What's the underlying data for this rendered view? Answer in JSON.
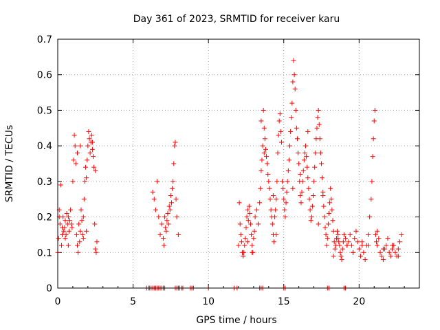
{
  "chart_data": {
    "type": "scatter",
    "title": "Day 361 of 2023, SRMTID for receiver karu",
    "xlabel": "GPS time / hours",
    "ylabel": "SRMTID / TECUs",
    "xlim": [
      0,
      24
    ],
    "ylim": [
      0,
      0.7
    ],
    "xticks": [
      0,
      5,
      10,
      15,
      20
    ],
    "xtick_labels": [
      "0",
      "5",
      "10",
      "15",
      "20"
    ],
    "yticks": [
      0,
      0.1,
      0.2,
      0.3,
      0.4,
      0.5,
      0.6,
      0.7
    ],
    "ytick_labels": [
      "0",
      "0.1",
      "0.2",
      "0.3",
      "0.4",
      "0.5",
      "0.6",
      "0.7"
    ],
    "grid": true,
    "marker": "+",
    "color": "#ff0000",
    "series": [
      {
        "name": "SRMTID",
        "x": [
          0.0,
          0.05,
          0.1,
          0.15,
          0.2,
          0.25,
          0.3,
          0.35,
          0.4,
          0.45,
          0.5,
          0.55,
          0.6,
          0.65,
          0.7,
          0.75,
          0.8,
          0.85,
          0.9,
          0.95,
          1.0,
          1.05,
          1.1,
          1.15,
          1.2,
          1.25,
          1.3,
          1.35,
          1.4,
          1.45,
          1.5,
          1.55,
          1.6,
          1.65,
          1.7,
          1.75,
          1.8,
          1.85,
          1.9,
          1.95,
          2.0,
          2.05,
          2.1,
          2.15,
          2.2,
          2.25,
          2.3,
          2.35,
          2.4,
          2.45,
          2.5,
          2.55,
          2.6,
          6.3,
          6.4,
          6.5,
          6.6,
          6.7,
          6.8,
          6.9,
          7.0,
          7.05,
          7.1,
          7.15,
          7.2,
          7.25,
          7.3,
          7.35,
          7.4,
          7.45,
          7.5,
          7.55,
          7.6,
          7.65,
          7.7,
          7.75,
          7.8,
          7.85,
          7.9,
          8.0,
          12.0,
          12.05,
          12.1,
          12.15,
          12.2,
          12.25,
          12.3,
          12.35,
          12.4,
          12.45,
          12.5,
          12.55,
          12.6,
          12.65,
          12.7,
          12.75,
          12.8,
          12.85,
          12.9,
          12.95,
          13.0,
          13.05,
          13.1,
          13.2,
          13.3,
          13.4,
          13.45,
          13.5,
          13.55,
          13.6,
          13.65,
          13.7,
          13.75,
          13.8,
          13.85,
          13.9,
          13.95,
          14.0,
          14.05,
          14.1,
          14.15,
          14.2,
          14.25,
          14.3,
          14.35,
          14.4,
          14.45,
          14.5,
          14.55,
          14.6,
          14.65,
          14.7,
          14.75,
          14.8,
          14.85,
          14.9,
          14.95,
          15.0,
          15.05,
          15.1,
          15.15,
          15.2,
          15.25,
          15.3,
          15.35,
          15.4,
          15.45,
          15.5,
          15.55,
          15.6,
          15.65,
          15.7,
          15.75,
          15.8,
          15.85,
          15.9,
          15.95,
          16.0,
          16.05,
          16.1,
          16.15,
          16.2,
          16.25,
          16.3,
          16.35,
          16.4,
          16.45,
          16.5,
          16.55,
          16.6,
          16.65,
          16.7,
          16.75,
          16.8,
          16.85,
          16.9,
          16.95,
          17.0,
          17.05,
          17.1,
          17.15,
          17.2,
          17.25,
          17.3,
          17.35,
          17.4,
          17.45,
          17.5,
          17.55,
          17.6,
          17.65,
          17.7,
          17.75,
          17.8,
          17.85,
          17.9,
          17.95,
          18.0,
          18.05,
          18.1,
          18.15,
          18.2,
          18.25,
          18.3,
          18.35,
          18.4,
          18.45,
          18.5,
          18.55,
          18.6,
          18.65,
          18.7,
          18.75,
          18.8,
          18.85,
          18.9,
          18.95,
          19.0,
          19.1,
          19.2,
          19.3,
          19.4,
          19.5,
          19.6,
          19.7,
          19.8,
          19.9,
          20.0,
          20.1,
          20.2,
          20.3,
          20.4,
          20.5,
          20.6,
          20.7,
          20.8,
          20.85,
          20.9,
          20.95,
          21.0,
          21.05,
          21.1,
          21.15,
          21.2,
          21.3,
          21.4,
          21.5,
          21.6,
          21.7,
          21.8,
          21.9,
          22.0,
          22.1,
          22.2,
          22.3,
          22.4,
          22.5,
          22.6,
          22.7,
          22.8,
          0.1,
          0.3,
          0.5,
          0.7,
          1.3,
          1.5,
          1.7,
          1.9,
          2.3,
          2.5,
          12.3,
          12.6,
          12.9,
          13.5,
          13.7,
          14.3,
          14.5,
          15.6,
          16.1,
          16.6,
          17.3,
          17.6,
          18.3,
          18.6,
          19.2,
          19.6,
          20.2,
          20.6,
          21.2,
          21.6,
          22.2,
          22.6,
          5.9,
          6.0,
          6.1,
          6.2,
          6.3,
          6.4,
          6.5,
          6.6,
          6.7,
          6.8,
          6.9,
          7.0,
          7.1,
          7.8,
          7.9,
          8.0,
          8.1,
          8.2,
          8.3,
          8.8,
          8.9,
          9.0,
          10.0,
          11.7,
          11.9,
          13.4,
          13.5,
          13.6,
          15.0,
          15.1,
          17.9,
          18.0,
          19.0,
          19.1
        ],
        "y": [
          0.1,
          0.14,
          0.22,
          0.18,
          0.29,
          0.12,
          0.15,
          0.2,
          0.16,
          0.17,
          0.19,
          0.15,
          0.21,
          0.18,
          0.2,
          0.16,
          0.19,
          0.22,
          0.18,
          0.17,
          0.3,
          0.36,
          0.43,
          0.4,
          0.35,
          0.15,
          0.12,
          0.1,
          0.18,
          0.13,
          0.16,
          0.22,
          0.19,
          0.15,
          0.2,
          0.25,
          0.3,
          0.34,
          0.31,
          0.36,
          0.4,
          0.44,
          0.42,
          0.38,
          0.41,
          0.43,
          0.39,
          0.37,
          0.34,
          0.18,
          0.11,
          0.1,
          0.13,
          0.27,
          0.25,
          0.22,
          0.3,
          0.2,
          0.15,
          0.18,
          0.14,
          0.12,
          0.2,
          0.17,
          0.16,
          0.19,
          0.21,
          0.18,
          0.23,
          0.22,
          0.26,
          0.24,
          0.28,
          0.3,
          0.35,
          0.4,
          0.41,
          0.25,
          0.2,
          0.15,
          0.12,
          0.24,
          0.18,
          0.15,
          0.13,
          0.1,
          0.09,
          0.1,
          0.12,
          0.14,
          0.17,
          0.2,
          0.22,
          0.19,
          0.23,
          0.21,
          0.18,
          0.15,
          0.12,
          0.1,
          0.14,
          0.16,
          0.2,
          0.22,
          0.18,
          0.24,
          0.28,
          0.33,
          0.36,
          0.4,
          0.5,
          0.45,
          0.42,
          0.39,
          0.37,
          0.35,
          0.32,
          0.3,
          0.28,
          0.25,
          0.22,
          0.2,
          0.18,
          0.15,
          0.13,
          0.2,
          0.22,
          0.25,
          0.3,
          0.38,
          0.43,
          0.47,
          0.49,
          0.44,
          0.41,
          0.3,
          0.28,
          0.25,
          0.22,
          0.2,
          0.24,
          0.27,
          0.3,
          0.33,
          0.36,
          0.4,
          0.44,
          0.48,
          0.52,
          0.58,
          0.64,
          0.6,
          0.56,
          0.5,
          0.45,
          0.42,
          0.38,
          0.35,
          0.3,
          0.26,
          0.24,
          0.27,
          0.3,
          0.33,
          0.36,
          0.38,
          0.4,
          0.37,
          0.34,
          0.31,
          0.28,
          0.25,
          0.22,
          0.19,
          0.2,
          0.23,
          0.26,
          0.3,
          0.34,
          0.38,
          0.42,
          0.45,
          0.48,
          0.5,
          0.46,
          0.42,
          0.38,
          0.35,
          0.31,
          0.27,
          0.23,
          0.2,
          0.17,
          0.15,
          0.12,
          0.14,
          0.18,
          0.21,
          0.24,
          0.28,
          0.25,
          0.22,
          0.19,
          0.16,
          0.13,
          0.11,
          0.12,
          0.14,
          0.16,
          0.15,
          0.13,
          0.12,
          0.1,
          0.09,
          0.08,
          0.11,
          0.13,
          0.15,
          0.14,
          0.12,
          0.13,
          0.15,
          0.12,
          0.1,
          0.14,
          0.16,
          0.13,
          0.11,
          0.09,
          0.12,
          0.1,
          0.08,
          0.12,
          0.15,
          0.2,
          0.25,
          0.3,
          0.37,
          0.42,
          0.47,
          0.5,
          0.15,
          0.13,
          0.12,
          0.14,
          0.1,
          0.09,
          0.08,
          0.11,
          0.12,
          0.14,
          0.1,
          0.09,
          0.11,
          0.12,
          0.1,
          0.09,
          0.11,
          0.13,
          0.15,
          0.2,
          0.17,
          0.14,
          0.12,
          0.38,
          0.4,
          0.14,
          0.16,
          0.41,
          0.33,
          0.09,
          0.13,
          0.1,
          0.47,
          0.38,
          0.26,
          0.15,
          0.28,
          0.32,
          0.44,
          0.18,
          0.26,
          0.09,
          0.14,
          0.12,
          0.1,
          0.13,
          0.12,
          0.16,
          0.11,
          0.12,
          0.09,
          0,
          0,
          0,
          0,
          0,
          0,
          0,
          0,
          0,
          0,
          0,
          0,
          0,
          0,
          0,
          0,
          0,
          0,
          0,
          0,
          0,
          0,
          0,
          0,
          0,
          0,
          0,
          0,
          0,
          0,
          0,
          0,
          0,
          0
        ]
      }
    ]
  }
}
